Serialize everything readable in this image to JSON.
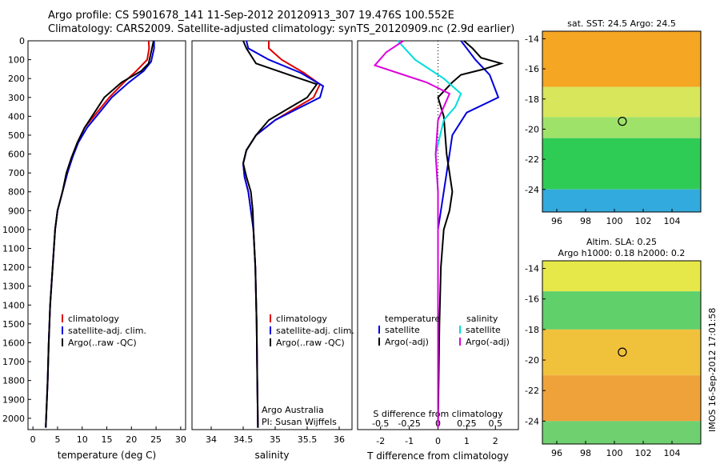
{
  "header": {
    "line1": "Argo profile: CS 5901678_141 11-Sep-2012 20120913_307 19.476S 100.552E",
    "line2": "Climatology: CARS2009. Satellite-adjusted climatology: synTS_20120909.nc (2.9d earlier)"
  },
  "side_stamp": "IMOS 16-Sep-2012 17:01:58",
  "colors": {
    "climatology": "#dd0000",
    "satellite": "#0000dd",
    "argo": "#000000",
    "salinity_satellite": "#00dddd",
    "salinity_argo": "#dd00dd"
  },
  "chart_data": [
    {
      "type": "line",
      "xlabel": "temperature (deg C)",
      "ylabel": "",
      "xlim": [
        -1,
        31
      ],
      "ylim": [
        2060,
        0
      ],
      "x_ticks": [
        0,
        5,
        10,
        15,
        20,
        25,
        30
      ],
      "y_ticks": [
        0,
        100,
        200,
        300,
        400,
        500,
        600,
        700,
        800,
        900,
        1000,
        1100,
        1200,
        1300,
        1400,
        1500,
        1600,
        1700,
        1800,
        1900,
        2000
      ],
      "legend": [
        "climatology",
        "satellite-adj. clim.",
        "Argo(..raw -QC)"
      ],
      "legend_position": "lower-middle",
      "series": [
        {
          "name": "climatology",
          "color": "#dd0000",
          "points": [
            [
              23.5,
              0
            ],
            [
              23.6,
              40
            ],
            [
              23.2,
              100
            ],
            [
              21.0,
              160
            ],
            [
              18.5,
              220
            ],
            [
              15.5,
              300
            ],
            [
              13.0,
              380
            ],
            [
              10.5,
              460
            ],
            [
              9.0,
              540
            ],
            [
              8.0,
              620
            ],
            [
              7.0,
              700
            ],
            [
              6.0,
              800
            ],
            [
              5.0,
              900
            ],
            [
              4.5,
              1000
            ],
            [
              4.0,
              1200
            ],
            [
              3.5,
              1400
            ],
            [
              3.2,
              1600
            ],
            [
              3.0,
              1800
            ],
            [
              2.6,
              2050
            ]
          ]
        },
        {
          "name": "satellite-adj. clim.",
          "color": "#0000dd",
          "points": [
            [
              24.6,
              0
            ],
            [
              24.6,
              40
            ],
            [
              24.0,
              110
            ],
            [
              22.5,
              160
            ],
            [
              19.5,
              220
            ],
            [
              16.0,
              300
            ],
            [
              13.5,
              380
            ],
            [
              11.0,
              460
            ],
            [
              9.2,
              540
            ],
            [
              8.0,
              620
            ],
            [
              7.0,
              700
            ],
            [
              6.0,
              800
            ],
            [
              5.0,
              900
            ],
            [
              4.5,
              1000
            ],
            [
              4.0,
              1200
            ],
            [
              3.5,
              1400
            ],
            [
              3.2,
              1600
            ],
            [
              3.0,
              1800
            ],
            [
              2.6,
              2050
            ]
          ]
        },
        {
          "name": "Argo(..raw -QC)",
          "color": "#000000",
          "points": [
            [
              24.5,
              0
            ],
            [
              24.0,
              60
            ],
            [
              23.5,
              120
            ],
            [
              22.0,
              160
            ],
            [
              18.0,
              220
            ],
            [
              14.5,
              300
            ],
            [
              12.5,
              380
            ],
            [
              10.5,
              460
            ],
            [
              9.0,
              540
            ],
            [
              7.8,
              620
            ],
            [
              6.8,
              700
            ],
            [
              6.0,
              800
            ],
            [
              5.0,
              900
            ],
            [
              4.5,
              1000
            ],
            [
              4.0,
              1200
            ],
            [
              3.5,
              1400
            ],
            [
              3.2,
              1600
            ],
            [
              3.0,
              1800
            ],
            [
              2.6,
              2050
            ]
          ]
        }
      ]
    },
    {
      "type": "line",
      "xlabel": "salinity",
      "ylabel": "",
      "xlim": [
        33.7,
        36.2
      ],
      "ylim": [
        2060,
        0
      ],
      "x_ticks": [
        34,
        34.5,
        35,
        35.5,
        36
      ],
      "legend": [
        "climatology",
        "satellite-adj. clim.",
        "Argo(..raw -QC)"
      ],
      "legend_position": "lower-middle",
      "annotation": [
        "Argo Australia",
        "PI: Susan Wijffels"
      ],
      "series": [
        {
          "name": "climatology",
          "color": "#dd0000",
          "points": [
            [
              34.9,
              0
            ],
            [
              34.9,
              40
            ],
            [
              35.1,
              100
            ],
            [
              35.45,
              170
            ],
            [
              35.7,
              230
            ],
            [
              35.6,
              300
            ],
            [
              35.3,
              360
            ],
            [
              35.0,
              420
            ],
            [
              34.7,
              500
            ],
            [
              34.55,
              580
            ],
            [
              34.5,
              650
            ],
            [
              34.52,
              720
            ],
            [
              34.58,
              800
            ],
            [
              34.62,
              900
            ],
            [
              34.66,
              1000
            ],
            [
              34.69,
              1200
            ],
            [
              34.71,
              1500
            ],
            [
              34.72,
              1800
            ],
            [
              34.73,
              2050
            ]
          ]
        },
        {
          "name": "satellite-adj. clim.",
          "color": "#0000dd",
          "points": [
            [
              34.55,
              0
            ],
            [
              34.58,
              40
            ],
            [
              34.9,
              100
            ],
            [
              35.4,
              170
            ],
            [
              35.75,
              240
            ],
            [
              35.7,
              300
            ],
            [
              35.35,
              360
            ],
            [
              35.0,
              420
            ],
            [
              34.7,
              500
            ],
            [
              34.55,
              580
            ],
            [
              34.5,
              650
            ],
            [
              34.52,
              720
            ],
            [
              34.58,
              800
            ],
            [
              34.62,
              900
            ],
            [
              34.66,
              1000
            ],
            [
              34.69,
              1200
            ],
            [
              34.71,
              1500
            ],
            [
              34.72,
              1800
            ],
            [
              34.73,
              2050
            ]
          ]
        },
        {
          "name": "Argo(..raw -QC)",
          "color": "#000000",
          "points": [
            [
              34.5,
              0
            ],
            [
              34.55,
              40
            ],
            [
              34.7,
              120
            ],
            [
              35.3,
              190
            ],
            [
              35.65,
              230
            ],
            [
              35.5,
              300
            ],
            [
              35.2,
              360
            ],
            [
              34.9,
              420
            ],
            [
              34.7,
              500
            ],
            [
              34.55,
              580
            ],
            [
              34.5,
              650
            ],
            [
              34.55,
              720
            ],
            [
              34.62,
              800
            ],
            [
              34.65,
              900
            ],
            [
              34.66,
              1000
            ],
            [
              34.69,
              1200
            ],
            [
              34.71,
              1500
            ],
            [
              34.72,
              1800
            ],
            [
              34.73,
              2050
            ]
          ]
        }
      ]
    },
    {
      "type": "line",
      "xlabel_top": "S difference from climatology",
      "xlabel": "T difference from climatology",
      "t_lim": [
        -2.8,
        2.8
      ],
      "s_lim": [
        -0.7,
        0.7
      ],
      "ylim": [
        2060,
        0
      ],
      "t_ticks": [
        -2,
        -1,
        0,
        1,
        2
      ],
      "s_ticks": [
        -0.5,
        -0.25,
        0,
        0.25,
        0.5
      ],
      "legend": {
        "temperature_title": "temperature",
        "salinity_title": "salinity",
        "t_satellite": "satellite",
        "t_argo": "Argo(-adj)",
        "s_satellite": "satellite",
        "s_argo": "Argo(-adj)"
      },
      "series": [
        {
          "name": "satellite",
          "quantity": "T",
          "color": "#0000dd",
          "points": [
            [
              0.8,
              0
            ],
            [
              1.0,
              40
            ],
            [
              1.3,
              100
            ],
            [
              1.8,
              180
            ],
            [
              2.1,
              300
            ],
            [
              1.0,
              380
            ],
            [
              0.5,
              500
            ],
            [
              0.4,
              600
            ],
            [
              0.3,
              700
            ],
            [
              0.2,
              800
            ],
            [
              0.1,
              900
            ],
            [
              0.0,
              1000
            ],
            [
              0.0,
              1500
            ],
            [
              0.0,
              2050
            ]
          ]
        },
        {
          "name": "Argo(-adj)",
          "quantity": "T",
          "color": "#000000",
          "points": [
            [
              0.9,
              0
            ],
            [
              1.2,
              40
            ],
            [
              1.5,
              90
            ],
            [
              2.2,
              120
            ],
            [
              1.6,
              150
            ],
            [
              0.8,
              180
            ],
            [
              0.5,
              220
            ],
            [
              0.0,
              300
            ],
            [
              0.2,
              400
            ],
            [
              0.3,
              600
            ],
            [
              0.4,
              700
            ],
            [
              0.5,
              800
            ],
            [
              0.4,
              900
            ],
            [
              0.2,
              1000
            ],
            [
              0.1,
              1200
            ],
            [
              0.05,
              1500
            ],
            [
              0.0,
              2050
            ]
          ]
        },
        {
          "name": "satellite",
          "quantity": "S",
          "color": "#00dddd",
          "points": [
            [
              -0.35,
              0
            ],
            [
              -0.2,
              100
            ],
            [
              0.05,
              200
            ],
            [
              0.2,
              280
            ],
            [
              0.15,
              350
            ],
            [
              0.05,
              420
            ],
            [
              -0.02,
              600
            ],
            [
              0.0,
              800
            ],
            [
              0.0,
              1000
            ],
            [
              0.0,
              1500
            ],
            [
              0.0,
              2050
            ]
          ]
        },
        {
          "name": "Argo(-adj)",
          "quantity": "S",
          "color": "#dd00dd",
          "points": [
            [
              -0.3,
              0
            ],
            [
              -0.45,
              60
            ],
            [
              -0.55,
              130
            ],
            [
              -0.3,
              180
            ],
            [
              -0.1,
              220
            ],
            [
              0.1,
              280
            ],
            [
              0.05,
              350
            ],
            [
              0.0,
              420
            ],
            [
              -0.02,
              600
            ],
            [
              0.0,
              800
            ],
            [
              0.0,
              1000
            ],
            [
              0.0,
              1500
            ],
            [
              0.0,
              2050
            ]
          ]
        }
      ]
    },
    {
      "type": "heatmap",
      "title": "sat. SST: 24.5 Argo: 24.5",
      "xlim": [
        95,
        106
      ],
      "ylim": [
        -25.5,
        -13.5
      ],
      "x_ticks": [
        96,
        98,
        100,
        102,
        104
      ],
      "y_ticks": [
        -14,
        -16,
        -18,
        -20,
        -22,
        -24
      ],
      "float_position": [
        100.55,
        -19.48
      ],
      "bands": [
        {
          "from": -13.5,
          "to": -17.2,
          "color": "#f5a623"
        },
        {
          "from": -17.2,
          "to": -19.2,
          "color": "#d7e65a"
        },
        {
          "from": -19.2,
          "to": -20.6,
          "color": "#9fe26a"
        },
        {
          "from": -20.6,
          "to": -24.0,
          "color": "#2ecc55"
        },
        {
          "from": -24.0,
          "to": -25.5,
          "color": "#33aadd"
        }
      ]
    },
    {
      "type": "heatmap",
      "title_lines": [
        "Altim. SLA: 0.25",
        "Argo h1000: 0.18 h2000: 0.2"
      ],
      "xlim": [
        95,
        106
      ],
      "ylim": [
        -25.5,
        -13.5
      ],
      "x_ticks": [
        96,
        98,
        100,
        102,
        104
      ],
      "y_ticks": [
        -14,
        -16,
        -18,
        -20,
        -22,
        -24
      ],
      "float_position": [
        100.55,
        -19.48
      ],
      "bands": [
        {
          "from": -13.5,
          "to": -15.5,
          "color": "#e6e84a"
        },
        {
          "from": -15.5,
          "to": -18.0,
          "color": "#5fd06a"
        },
        {
          "from": -18.0,
          "to": -21.0,
          "color": "#f0c23c"
        },
        {
          "from": -21.0,
          "to": -24.0,
          "color": "#f0a23a"
        },
        {
          "from": -24.0,
          "to": -25.5,
          "color": "#6fd070"
        }
      ]
    }
  ]
}
